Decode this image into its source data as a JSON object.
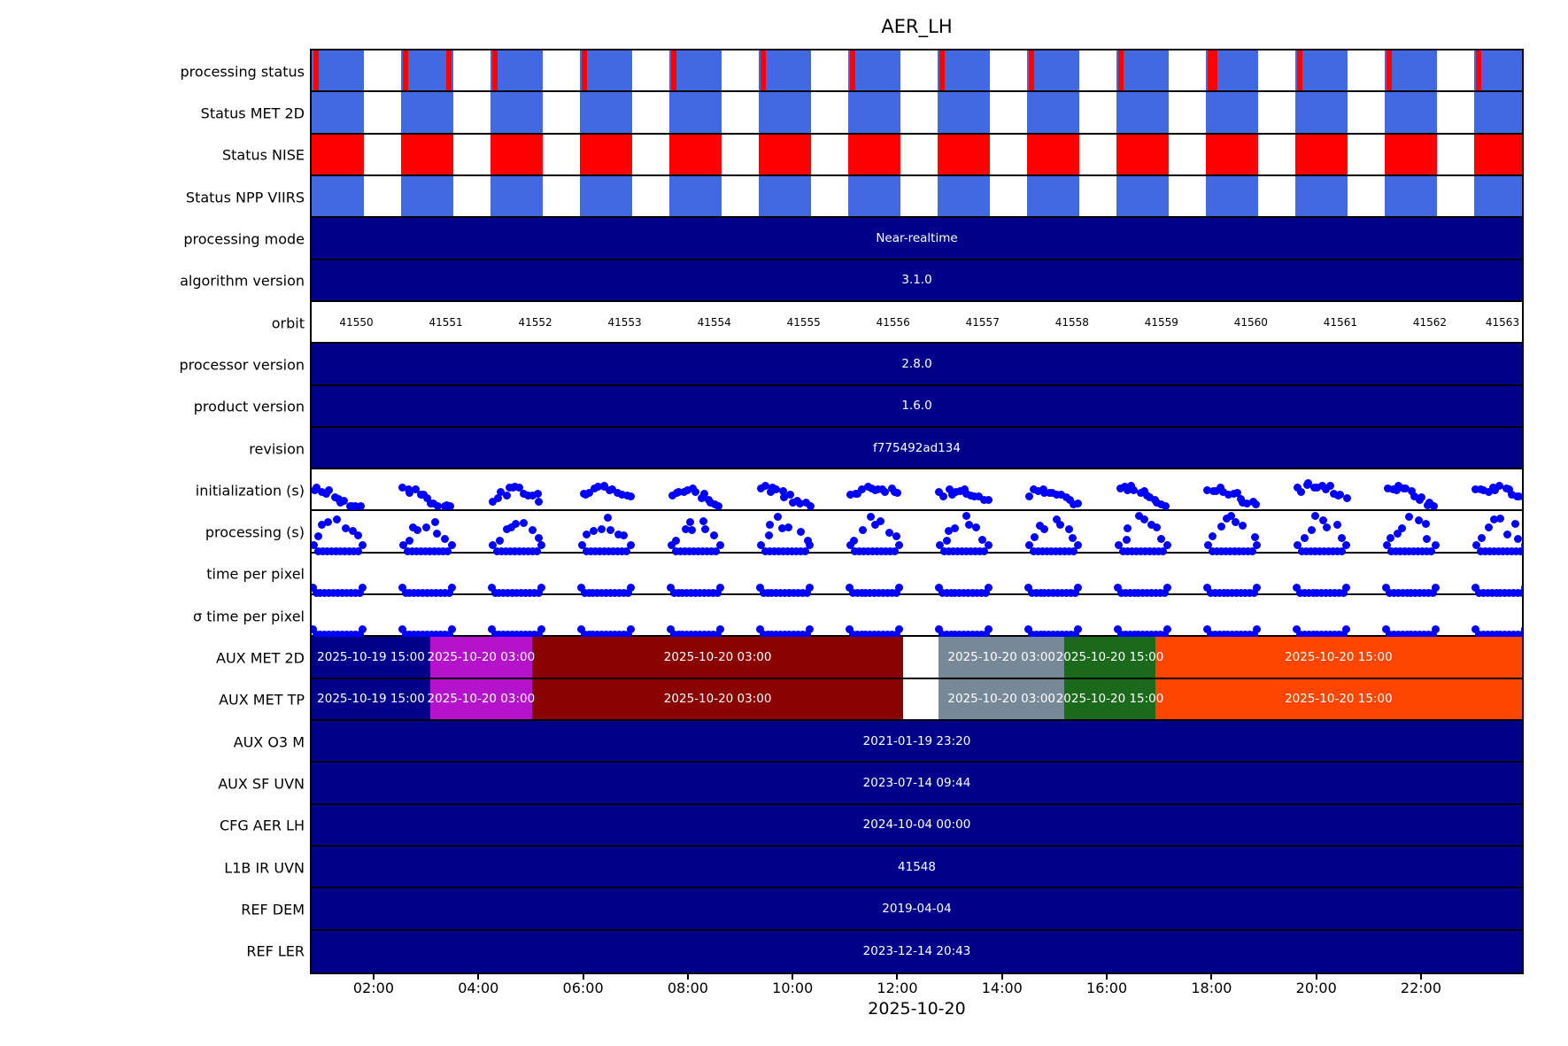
{
  "title": "AER_LH",
  "x_axis": {
    "date_label": "2025-10-20",
    "tick_labels": [
      "02:00",
      "04:00",
      "06:00",
      "08:00",
      "10:00",
      "12:00",
      "14:00",
      "16:00",
      "18:00",
      "20:00",
      "22:00"
    ]
  },
  "colors": {
    "status_blue": "#4169E1",
    "status_red": "#FF0000",
    "bar_navy": "#00008B",
    "dot_blue": "#0000FF",
    "aux_magenta": "#B412CB",
    "aux_darkred": "#8B0000",
    "aux_gray": "#778899",
    "aux_green": "#1B6A1B",
    "aux_orange": "#FF4500"
  },
  "chart_data": {
    "type": "status_timeline",
    "title": "AER_LH",
    "x_date": "2025-10-20",
    "x_tick_labels": [
      "02:00",
      "04:00",
      "06:00",
      "08:00",
      "10:00",
      "12:00",
      "14:00",
      "16:00",
      "18:00",
      "20:00",
      "22:00"
    ],
    "orbit_numbers": [
      41550,
      41551,
      41552,
      41553,
      41554,
      41555,
      41556,
      41557,
      41558,
      41559,
      41560,
      41561,
      41562,
      41563
    ],
    "rows": [
      {
        "label": "processing status",
        "type": "blocks",
        "color": "#4169E1",
        "stripes": {
          "start_all": true,
          "end_orbits": [
            1
          ],
          "wide_orbits": [
            10
          ]
        }
      },
      {
        "label": "Status MET 2D",
        "type": "blocks",
        "color": "#4169E1"
      },
      {
        "label": "Status NISE",
        "type": "blocks",
        "color": "#FF0000"
      },
      {
        "label": "Status NPP VIIRS",
        "type": "blocks",
        "color": "#4169E1"
      },
      {
        "label": "processing mode",
        "type": "bar",
        "color": "#00008B",
        "value": "Near-realtime"
      },
      {
        "label": "algorithm version",
        "type": "bar",
        "color": "#00008B",
        "value": "3.1.0"
      },
      {
        "label": "orbit",
        "type": "orbits"
      },
      {
        "label": "processor version",
        "type": "bar",
        "color": "#00008B",
        "value": "2.8.0"
      },
      {
        "label": "product version",
        "type": "bar",
        "color": "#00008B",
        "value": "1.6.0"
      },
      {
        "label": "revision",
        "type": "bar",
        "color": "#00008B",
        "value": "f775492ad134"
      },
      {
        "label": "initialization (s)",
        "type": "scatter",
        "pattern": "arc"
      },
      {
        "label": "processing (s)",
        "type": "scatter",
        "pattern": "spread"
      },
      {
        "label": "time per pixel",
        "type": "scatter",
        "pattern": "baseline"
      },
      {
        "label": "σ time per pixel",
        "type": "scatter",
        "pattern": "baseline"
      },
      {
        "label": "AUX MET 2D",
        "type": "segments",
        "segments": [
          {
            "f0": 0.0,
            "f1": 0.098,
            "color": "#00008B",
            "label": "2025-10-19 15:00"
          },
          {
            "f0": 0.098,
            "f1": 0.182,
            "color": "#B412CB",
            "label": "2025-10-20 03:00"
          },
          {
            "f0": 0.182,
            "f1": 0.489,
            "color": "#8B0000",
            "label": "2025-10-20 03:00"
          },
          {
            "f0": 0.489,
            "f1": 0.518,
            "color": "#FFFFFF",
            "label": ""
          },
          {
            "f0": 0.518,
            "f1": 0.622,
            "color": "#778899",
            "label": "2025-10-20 03:00"
          },
          {
            "f0": 0.622,
            "f1": 0.697,
            "color": "#1B6A1B",
            "label": "2025-10-20 15:00"
          },
          {
            "f0": 0.697,
            "f1": 1.0,
            "color": "#FF4500",
            "label": "2025-10-20 15:00"
          }
        ]
      },
      {
        "label": "AUX MET TP",
        "type": "segments",
        "segments": [
          {
            "f0": 0.0,
            "f1": 0.098,
            "color": "#00008B",
            "label": "2025-10-19 15:00"
          },
          {
            "f0": 0.098,
            "f1": 0.182,
            "color": "#B412CB",
            "label": "2025-10-20 03:00"
          },
          {
            "f0": 0.182,
            "f1": 0.489,
            "color": "#8B0000",
            "label": "2025-10-20 03:00"
          },
          {
            "f0": 0.489,
            "f1": 0.518,
            "color": "#FFFFFF",
            "label": ""
          },
          {
            "f0": 0.518,
            "f1": 0.622,
            "color": "#778899",
            "label": "2025-10-20 03:00"
          },
          {
            "f0": 0.622,
            "f1": 0.697,
            "color": "#1B6A1B",
            "label": "2025-10-20 15:00"
          },
          {
            "f0": 0.697,
            "f1": 1.0,
            "color": "#FF4500",
            "label": "2025-10-20 15:00"
          }
        ]
      },
      {
        "label": "AUX O3   M",
        "type": "bar",
        "color": "#00008B",
        "value": "2021-01-19 23:20"
      },
      {
        "label": "AUX SF UVN",
        "type": "bar",
        "color": "#00008B",
        "value": "2023-07-14 09:44"
      },
      {
        "label": "CFG AER LH",
        "type": "bar",
        "color": "#00008B",
        "value": "2024-10-04 00:00"
      },
      {
        "label": "L1B IR UVN",
        "type": "bar",
        "color": "#00008B",
        "value": "41548"
      },
      {
        "label": "REF DEM",
        "type": "bar",
        "color": "#00008B",
        "value": "2019-04-04"
      },
      {
        "label": "REF LER",
        "type": "bar",
        "color": "#00008B",
        "value": "2023-12-14 20:43"
      }
    ],
    "layout_hints": {
      "orbits_per_axis": 13.53,
      "block_fill_fraction": 0.584,
      "first_tick_fraction": 0.0512,
      "tick_step_fraction": 0.08654,
      "legend": "none",
      "grid": "off"
    }
  }
}
